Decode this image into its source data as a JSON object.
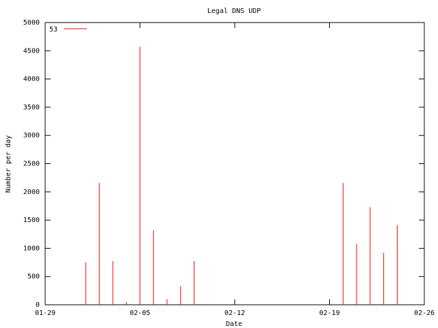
{
  "chart_data": {
    "type": "impulse",
    "title": "Legal DNS UDP",
    "x_label": "Date",
    "y_label": "Number per day",
    "x": [
      "02-01",
      "02-02",
      "02-03",
      "02-04",
      "02-05",
      "02-06",
      "02-07",
      "02-08",
      "02-09",
      "02-20",
      "02-21",
      "02-22",
      "02-23",
      "02-24"
    ],
    "series": [
      {
        "name": "53",
        "color": "#ff0000",
        "values": [
          750,
          2160,
          775,
          50,
          4570,
          1320,
          100,
          330,
          775,
          2160,
          1080,
          1730,
          920,
          1410
        ]
      }
    ],
    "xlim": [
      "01-29",
      "02-26"
    ],
    "xticks": [
      "01-29",
      "02-05",
      "02-12",
      "02-19",
      "02-26"
    ],
    "ylim": [
      0,
      5000
    ],
    "yticks": [
      0,
      500,
      1000,
      1500,
      2000,
      2500,
      3000,
      3500,
      4000,
      4500,
      5000
    ],
    "grid": false,
    "legend": "top-left"
  }
}
